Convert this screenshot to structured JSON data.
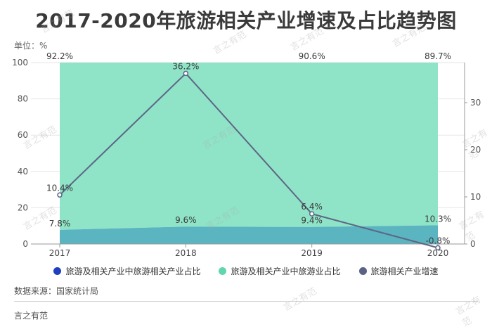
{
  "title": "2017-2020年旅游相关产业增速及占比趋势图",
  "unit_label": "单位：%",
  "source": "数据来源：国家统计局",
  "footer": "言之有范",
  "watermark_text": "言之有范",
  "colors": {
    "share_dark": "#5ab5c0",
    "share_light": "#8fe4c8",
    "growth_line": "#5d6685",
    "legend_dark": "#1f3fbf",
    "legend_light": "#5fd6ad",
    "legend_line": "#5a6287"
  },
  "chart_data": {
    "type": "area",
    "categories": [
      "2017",
      "2018",
      "2019",
      "2020"
    ],
    "left_axis": {
      "ylim": [
        0,
        100
      ],
      "ticks": [
        "0",
        "20",
        "40",
        "60",
        "80",
        "100"
      ]
    },
    "right_axis": {
      "ylim": [
        0,
        38.5
      ],
      "ticks": [
        "0",
        "10",
        "20",
        "30"
      ]
    },
    "series": [
      {
        "name": "旅游及相关产业中旅游相关产业占比",
        "axis": "left",
        "chart": "area",
        "values": [
          7.8,
          9.6,
          9.4,
          10.3
        ],
        "labels": [
          "7.8%",
          "9.6%",
          "9.4%",
          "10.3%"
        ]
      },
      {
        "name": "旅游及相关产业中旅游业占比",
        "axis": "left",
        "chart": "area",
        "values": [
          92.2,
          90.4,
          90.6,
          89.7
        ],
        "labels": [
          "92.2%",
          "",
          "90.6%",
          "89.7%"
        ]
      },
      {
        "name": "旅游相关产业增速",
        "axis": "right",
        "chart": "line",
        "values": [
          10.4,
          36.2,
          6.4,
          -0.8
        ],
        "labels": [
          "10.4%",
          "36.2%",
          "6.4%",
          "-0.8%"
        ]
      }
    ]
  }
}
